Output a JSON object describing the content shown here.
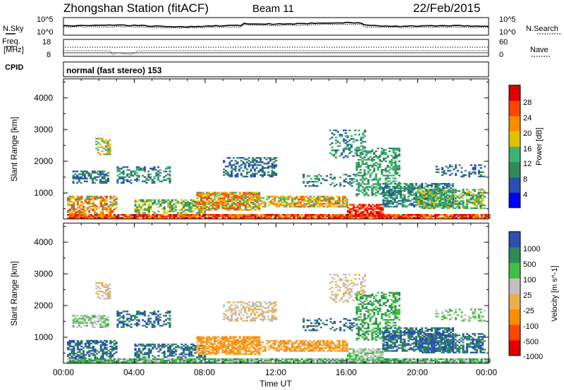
{
  "header": {
    "station": "Zhongshan Station (fitACF)",
    "beam": "Beam 11",
    "date": "22/Feb/2015"
  },
  "sky_panel": {
    "left_label": "N.Sky",
    "right_label": "N.Search",
    "left_ticks": [
      "10^5",
      "10^0"
    ],
    "right_ticks": [
      "10^5",
      "10^0"
    ]
  },
  "freq_panel": {
    "left_label_line1": "Freq.",
    "left_label_line2": "[MHz]",
    "right_label": "Nave",
    "left_ticks": [
      "18",
      "8"
    ],
    "right_ticks": [
      "60",
      "0"
    ]
  },
  "cpid": {
    "label": "CPID",
    "value": "normal (fast stereo) 153"
  },
  "x_axis": {
    "label": "Time UT",
    "ticks": [
      "00:00",
      "04:00",
      "08:00",
      "12:00",
      "16:00",
      "20:00",
      "00:00"
    ]
  },
  "colors": {
    "power_scale": [
      "#0000ff",
      "#2b4fb0",
      "#2e8b57",
      "#3cb371",
      "#e0c000",
      "#ff8c00",
      "#ff4500",
      "#e00000"
    ],
    "velocity_scale": [
      "#e00000",
      "#ff4500",
      "#ff8c00",
      "#e8b050",
      "#c0c0c0",
      "#40c040",
      "#2e8b57",
      "#2b4fb0"
    ]
  },
  "chart_data": [
    {
      "type": "heatmap",
      "name": "power",
      "ylabel": "Slant Range [km]",
      "xlabel": "",
      "yticks": [
        "1000",
        "2000",
        "3000",
        "4000"
      ],
      "ylim": [
        180,
        4600
      ],
      "colorbar_label": "Power [dB]",
      "colorbar_ticks": [
        "4",
        "8",
        "12",
        "16",
        "20",
        "24",
        "28"
      ]
    },
    {
      "type": "heatmap",
      "name": "velocity",
      "ylabel": "Slant Range [km]",
      "xlabel": "Time UT",
      "yticks": [
        "1000",
        "2000",
        "3000",
        "4000"
      ],
      "ylim": [
        180,
        4600
      ],
      "colorbar_label": "Velocity [m s^-1]",
      "colorbar_ticks": [
        "1000",
        "500",
        "100",
        "25",
        "-25",
        "-100",
        "-500",
        "-1000"
      ]
    }
  ]
}
